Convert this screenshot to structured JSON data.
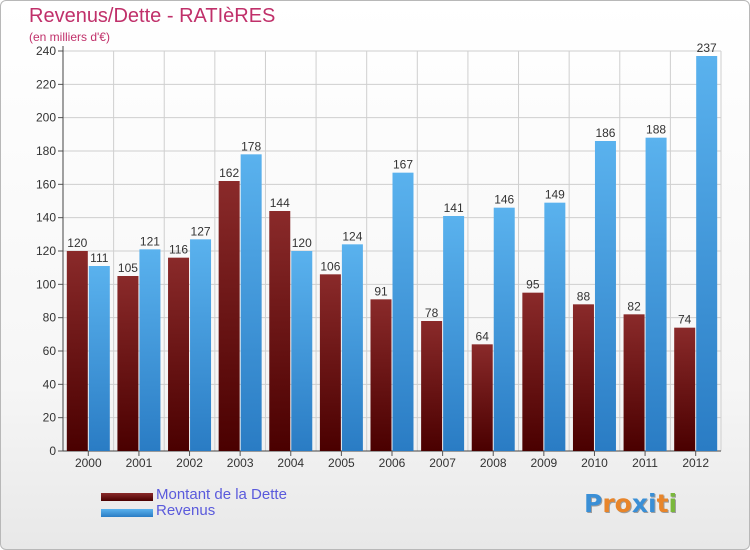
{
  "title": "Revenus/Dette - RATIèRES",
  "subtitle": "(en milliers d'€)",
  "logo": {
    "text": "Proxiti",
    "letters": [
      "P",
      "r",
      "o",
      "x",
      "i",
      "t",
      "i"
    ],
    "colors": [
      "#3a8fd6",
      "#e8852a",
      "#e8852a",
      "#3a8fd6",
      "#3a8fd6",
      "#e8852a",
      "#7ab83c"
    ]
  },
  "colors": {
    "dette": "#7a1a1a",
    "dette_dark": "#5a0808",
    "revenus": "#3fa0e6",
    "revenus_dark": "#2a80c8",
    "axis_text": "#333333",
    "grid": "#cfcfcf"
  },
  "chart_data": {
    "type": "bar",
    "title": "Revenus/Dette - RATIèRES",
    "subtitle": "(en milliers d'€)",
    "categories": [
      "2000",
      "2001",
      "2002",
      "2003",
      "2004",
      "2005",
      "2006",
      "2007",
      "2008",
      "2009",
      "2010",
      "2011",
      "2012"
    ],
    "series": [
      {
        "name": "Montant de la Dette",
        "values": [
          120,
          105,
          116,
          162,
          144,
          106,
          91,
          78,
          64,
          95,
          88,
          82,
          74
        ]
      },
      {
        "name": "Revenus",
        "values": [
          111,
          121,
          127,
          178,
          120,
          124,
          167,
          141,
          146,
          149,
          186,
          188,
          237
        ]
      }
    ],
    "yticks": [
      0,
      20,
      40,
      60,
      80,
      100,
      120,
      140,
      160,
      180,
      200,
      220,
      240
    ],
    "ylim": [
      0,
      240
    ],
    "grid": true,
    "legend_position": "bottom-left",
    "data_labels": true
  }
}
